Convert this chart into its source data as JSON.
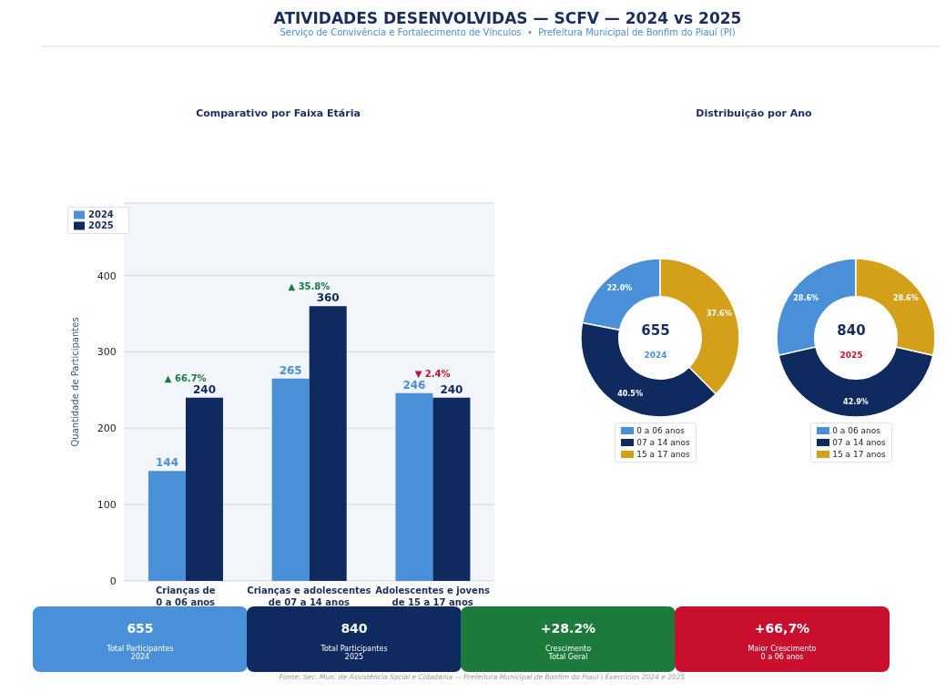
{
  "chart_data": [
    {
      "type": "other",
      "title": "ATIVIDADES DESENVOLVIDAS — SCFV — 2024 vs 2025",
      "subtitle": "Serviço de Convivência e Fortalecimento de Vínculos  •  Prefeitura Municipal de Bonfim do Piauí (PI)"
    },
    {
      "type": "bar",
      "title": "Comparativo por Faixa Etária",
      "ylabel": "Quantidade de Participantes",
      "categories": [
        "Crianças de\n0 a 06 anos",
        "Crianças e adolescentes\nde 07 a 14 anos",
        "Adolescentes e jovens\nde 15 a 17 anos"
      ],
      "series": [
        {
          "name": "2024",
          "color": "#4a90d9",
          "values": [
            144,
            265,
            246
          ]
        },
        {
          "name": "2025",
          "color": "#0f2a5e",
          "values": [
            240,
            360,
            240
          ]
        }
      ],
      "ylim": [
        0,
        495
      ],
      "yticks": [
        0,
        100,
        200,
        300,
        400
      ],
      "grid": "y",
      "legend": "top left",
      "data_labels": true,
      "annotations": [
        "▲ 66.7%",
        "▲ 35.8%",
        "▼ 2.4%"
      ]
    },
    {
      "type": "donut",
      "title": "Distribuição por Ano",
      "categories": [
        "0 a 06 anos",
        "07 a 14 anos",
        "15 a 17 anos"
      ],
      "values": [
        22.0,
        40.5,
        37.6
      ],
      "value_labels": [
        "22.0%",
        "40.5%",
        "37.6%"
      ],
      "colors": [
        "#4a90d9",
        "#0f2a5e",
        "#d4a01a"
      ],
      "annotations": [
        "655",
        "2024"
      ],
      "legend": "bottom"
    },
    {
      "type": "donut",
      "categories": [
        "0 a 06 anos",
        "07 a 14 anos",
        "15 a 17 anos"
      ],
      "values": [
        28.6,
        42.9,
        28.6
      ],
      "value_labels": [
        "28.6%",
        "42.9%",
        "28.6%"
      ],
      "colors": [
        "#4a90d9",
        "#0f2a5e",
        "#d4a01a"
      ],
      "annotations": [
        "840",
        "2025"
      ],
      "legend": "bottom"
    },
    {
      "type": "other",
      "colors": [
        "#4a90d9",
        "#0f2a5e",
        "#1b7a3c",
        "#c8102e"
      ],
      "annotations": [
        "655",
        "Total Participantes\n2024",
        "840",
        "Total Participantes\n2025",
        "+28.2%",
        "Crescimento\nTotal Geral",
        "+66,7%",
        "Maior Crescimento\n0 a 06 anos",
        "Fonte: Sec. Mun. de Assistência Social e Cidadania — Prefeitura Municipal de Bonfim do Piauí  |  Exercícios 2024 e 2025"
      ]
    }
  ]
}
